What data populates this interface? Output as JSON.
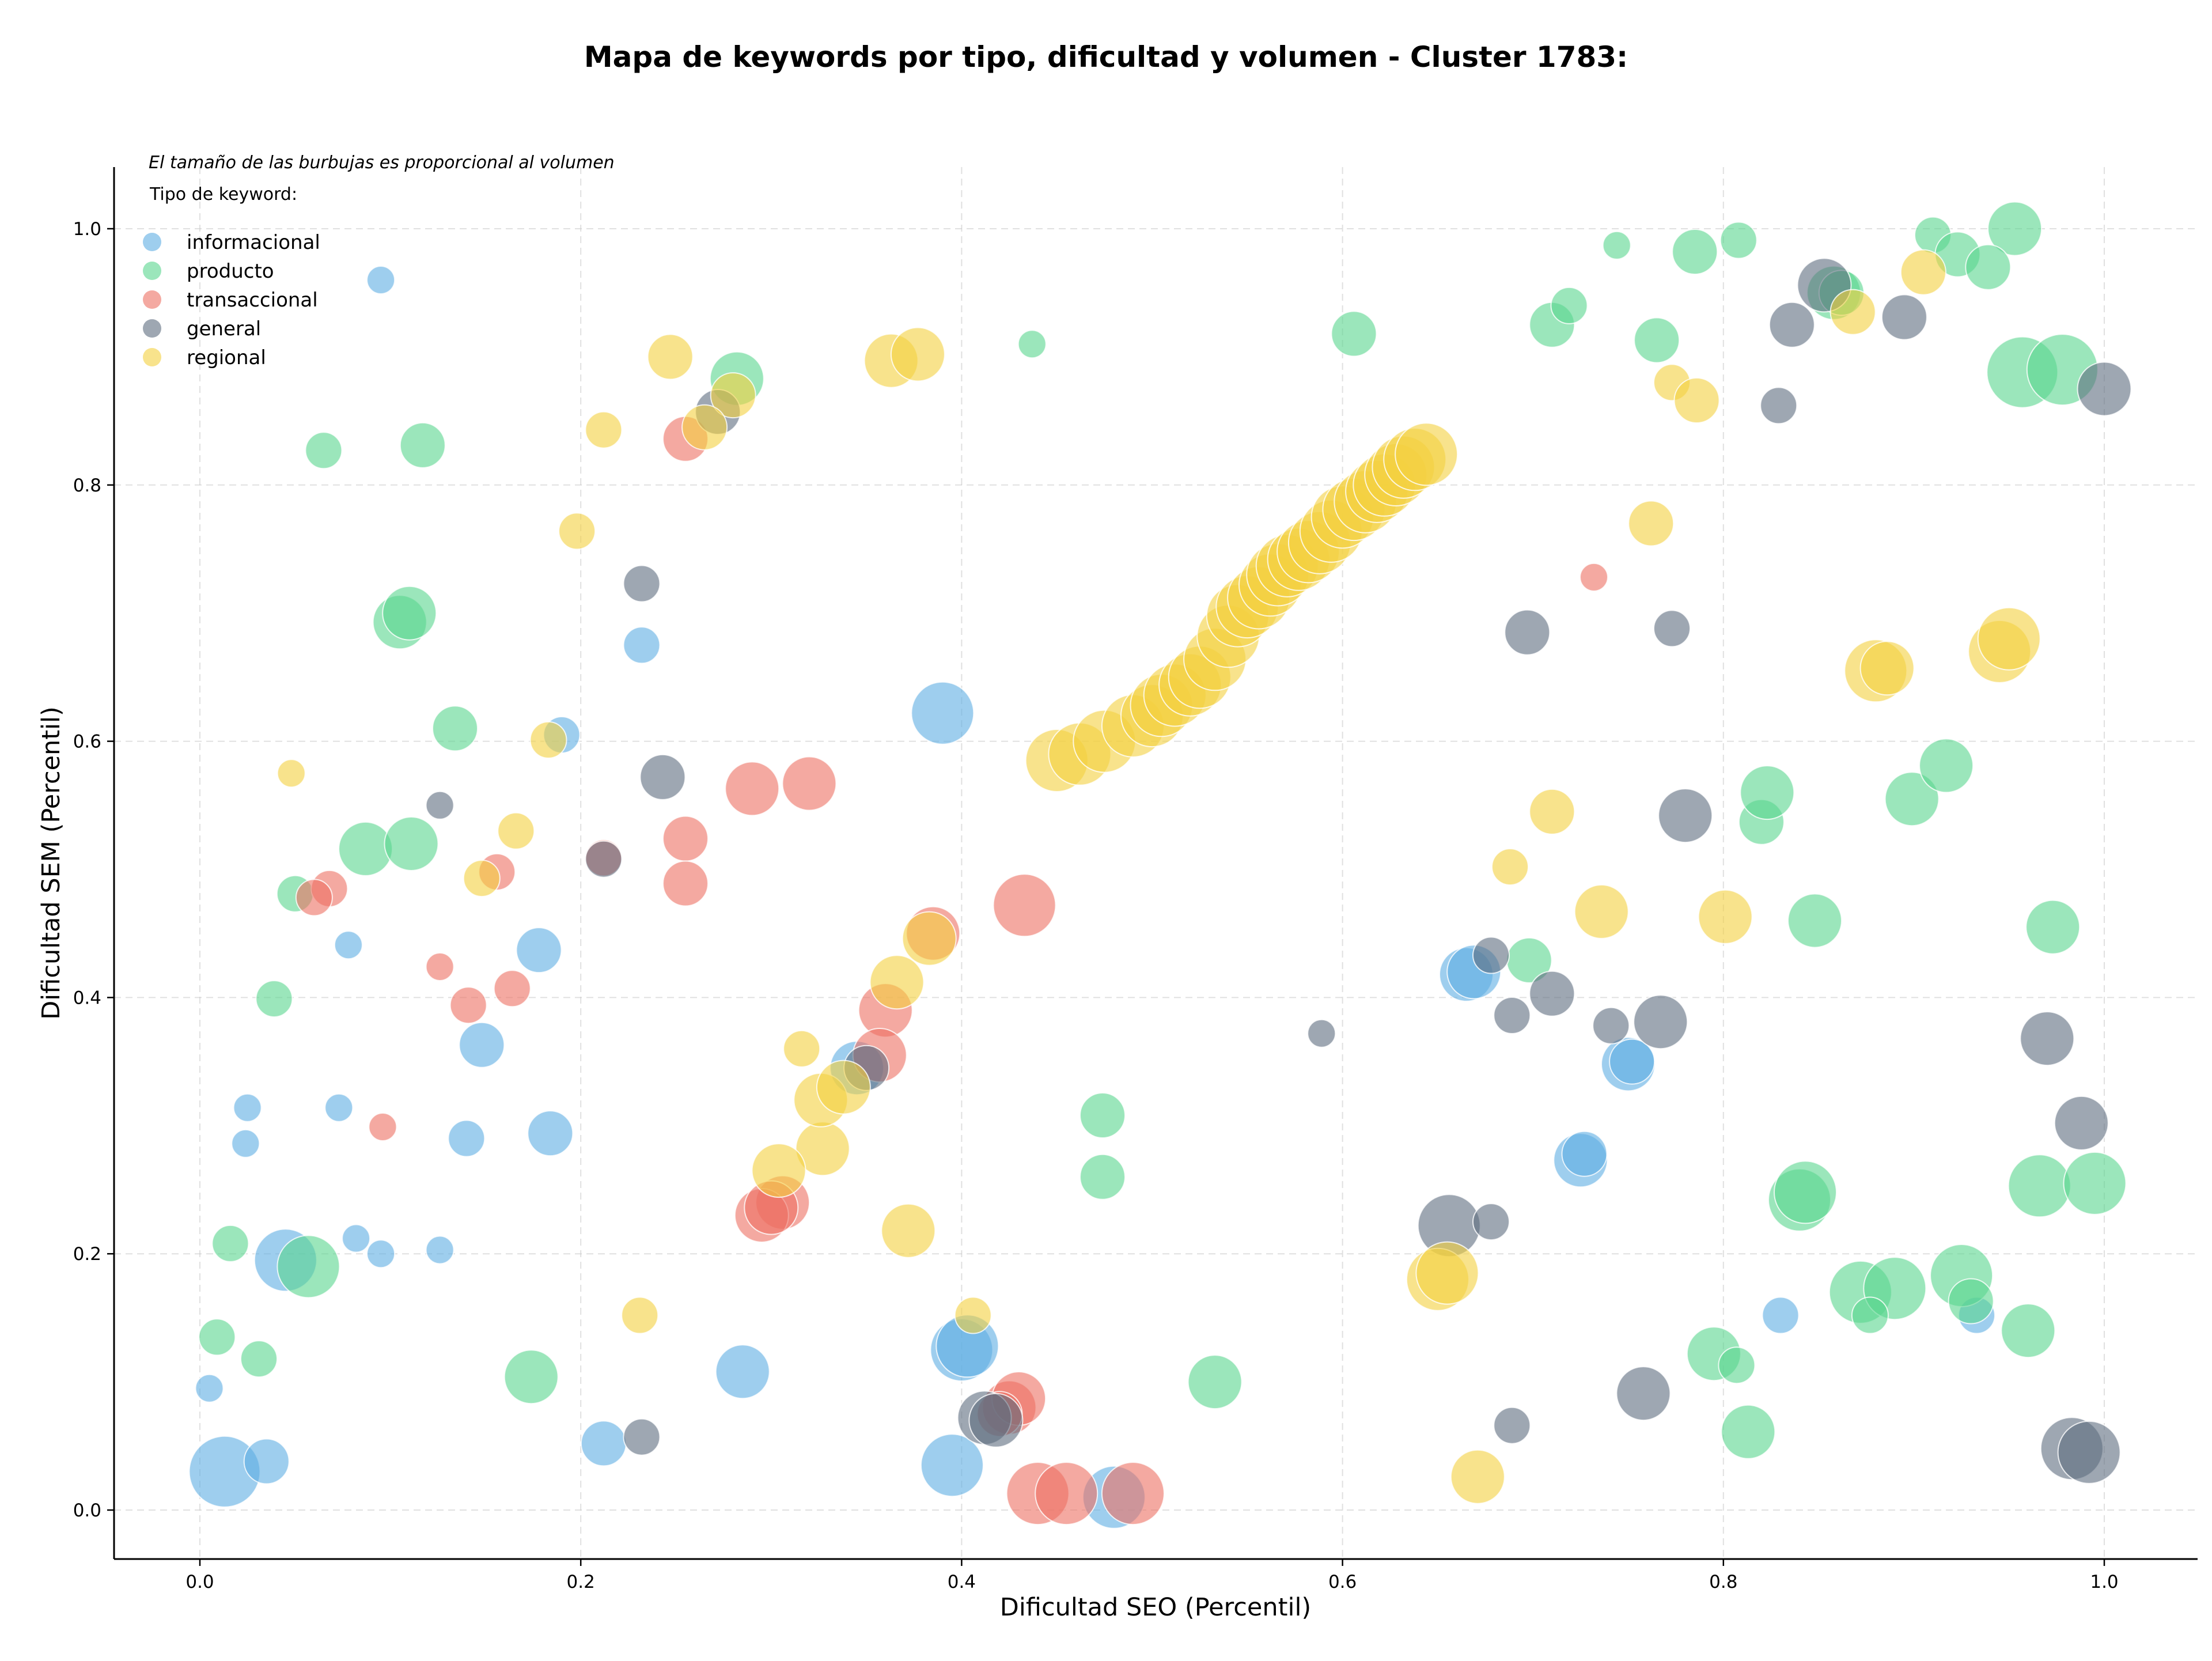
{
  "chart_data": {
    "type": "scatter",
    "title": "Mapa de keywords por tipo, dificultad y volumen - Cluster 1783:",
    "xlabel": "Dificultad SEO (Percentil)",
    "ylabel": "Dificultad SEM (Percentil)",
    "xlim": [
      -0.045,
      1.05
    ],
    "ylim": [
      -0.035,
      1.05
    ],
    "x_ticks": [
      0.0,
      0.2,
      0.4,
      0.6,
      0.8,
      1.0
    ],
    "y_ticks": [
      0.0,
      0.2,
      0.4,
      0.6,
      0.8,
      1.0
    ],
    "x_tick_labels": [
      "0.0",
      "0.2",
      "0.4",
      "0.6",
      "0.8",
      "1.0"
    ],
    "y_tick_labels": [
      "0.0",
      "0.2",
      "0.4",
      "0.6",
      "0.8",
      "1.0"
    ],
    "grid": true,
    "note": "El tamaño de las burbujas es proporcional al volumen",
    "legend_title": "Tipo de keyword:",
    "legend_position": "top-left",
    "series": [
      {
        "name": "informacional",
        "color": "#5dade2",
        "points": [
          [
            0.095,
            0.96,
            2
          ],
          [
            0.232,
            0.675,
            3
          ],
          [
            0.39,
            0.622,
            6
          ],
          [
            0.19,
            0.605,
            3
          ],
          [
            0.078,
            0.441,
            2
          ],
          [
            0.178,
            0.437,
            4
          ],
          [
            0.148,
            0.363,
            4
          ],
          [
            0.025,
            0.314,
            2
          ],
          [
            0.073,
            0.314,
            2
          ],
          [
            0.024,
            0.286,
            2
          ],
          [
            0.14,
            0.29,
            3
          ],
          [
            0.184,
            0.294,
            4
          ],
          [
            0.045,
            0.195,
            6
          ],
          [
            0.082,
            0.212,
            2
          ],
          [
            0.095,
            0.2,
            2
          ],
          [
            0.126,
            0.203,
            2
          ],
          [
            0.005,
            0.095,
            2
          ],
          [
            0.013,
            0.03,
            7
          ],
          [
            0.035,
            0.038,
            4
          ],
          [
            0.212,
            0.052,
            4
          ],
          [
            0.285,
            0.108,
            5
          ],
          [
            0.4,
            0.125,
            6
          ],
          [
            0.403,
            0.128,
            6
          ],
          [
            0.395,
            0.035,
            6
          ],
          [
            0.48,
            0.01,
            6
          ],
          [
            0.665,
            0.418,
            5
          ],
          [
            0.669,
            0.42,
            5
          ],
          [
            0.75,
            0.348,
            5
          ],
          [
            0.752,
            0.35,
            4
          ],
          [
            0.725,
            0.273,
            5
          ],
          [
            0.727,
            0.278,
            4
          ],
          [
            0.83,
            0.152,
            3
          ],
          [
            0.933,
            0.152,
            3
          ],
          [
            0.345,
            0.345,
            5
          ]
        ]
      },
      {
        "name": "producto",
        "color": "#58d68d",
        "points": [
          [
            0.065,
            0.827,
            3
          ],
          [
            0.117,
            0.831,
            4
          ],
          [
            0.282,
            0.883,
            5
          ],
          [
            0.437,
            0.91,
            2
          ],
          [
            0.105,
            0.693,
            5
          ],
          [
            0.11,
            0.7,
            5
          ],
          [
            0.134,
            0.61,
            4
          ],
          [
            0.087,
            0.516,
            5
          ],
          [
            0.111,
            0.52,
            5
          ],
          [
            0.05,
            0.481,
            3
          ],
          [
            0.039,
            0.399,
            3
          ],
          [
            0.016,
            0.208,
            3
          ],
          [
            0.057,
            0.19,
            6
          ],
          [
            0.009,
            0.135,
            3
          ],
          [
            0.031,
            0.118,
            3
          ],
          [
            0.174,
            0.104,
            5
          ],
          [
            0.474,
            0.308,
            4
          ],
          [
            0.474,
            0.26,
            4
          ],
          [
            0.533,
            0.1,
            5
          ],
          [
            0.606,
            0.918,
            4
          ],
          [
            0.744,
            0.987,
            2
          ],
          [
            0.785,
            0.982,
            4
          ],
          [
            0.808,
            0.991,
            3
          ],
          [
            0.71,
            0.925,
            4
          ],
          [
            0.719,
            0.94,
            3
          ],
          [
            0.765,
            0.913,
            4
          ],
          [
            0.858,
            0.95,
            5
          ],
          [
            0.862,
            0.95,
            4
          ],
          [
            0.91,
            0.995,
            3
          ],
          [
            0.923,
            0.98,
            4
          ],
          [
            0.953,
            1.0,
            5
          ],
          [
            0.939,
            0.97,
            4
          ],
          [
            0.957,
            0.888,
            7
          ],
          [
            0.978,
            0.89,
            7
          ],
          [
            0.698,
            0.429,
            4
          ],
          [
            0.82,
            0.537,
            4
          ],
          [
            0.823,
            0.56,
            5
          ],
          [
            0.899,
            0.555,
            5
          ],
          [
            0.917,
            0.581,
            5
          ],
          [
            0.848,
            0.46,
            5
          ],
          [
            0.973,
            0.455,
            5
          ],
          [
            0.795,
            0.122,
            5
          ],
          [
            0.807,
            0.113,
            3
          ],
          [
            0.813,
            0.061,
            5
          ],
          [
            0.84,
            0.242,
            6
          ],
          [
            0.843,
            0.248,
            6
          ],
          [
            0.872,
            0.17,
            6
          ],
          [
            0.89,
            0.173,
            6
          ],
          [
            0.877,
            0.152,
            3
          ],
          [
            0.925,
            0.183,
            6
          ],
          [
            0.93,
            0.163,
            4
          ],
          [
            0.96,
            0.14,
            5
          ],
          [
            0.966,
            0.253,
            6
          ],
          [
            0.995,
            0.255,
            6
          ]
        ]
      },
      {
        "name": "transaccional",
        "color": "#ec7063",
        "points": [
          [
            0.255,
            0.836,
            4
          ],
          [
            0.068,
            0.485,
            3
          ],
          [
            0.06,
            0.478,
            3
          ],
          [
            0.156,
            0.498,
            3
          ],
          [
            0.126,
            0.424,
            2
          ],
          [
            0.141,
            0.394,
            3
          ],
          [
            0.164,
            0.407,
            3
          ],
          [
            0.096,
            0.299,
            2
          ],
          [
            0.212,
            0.509,
            3
          ],
          [
            0.255,
            0.524,
            4
          ],
          [
            0.255,
            0.489,
            4
          ],
          [
            0.29,
            0.563,
            5
          ],
          [
            0.32,
            0.567,
            5
          ],
          [
            0.433,
            0.472,
            6
          ],
          [
            0.385,
            0.45,
            5
          ],
          [
            0.36,
            0.39,
            5
          ],
          [
            0.357,
            0.355,
            5
          ],
          [
            0.306,
            0.24,
            5
          ],
          [
            0.295,
            0.23,
            5
          ],
          [
            0.3,
            0.236,
            5
          ],
          [
            0.425,
            0.08,
            5
          ],
          [
            0.43,
            0.087,
            5
          ],
          [
            0.42,
            0.075,
            4
          ],
          [
            0.44,
            0.013,
            6
          ],
          [
            0.455,
            0.013,
            6
          ],
          [
            0.49,
            0.013,
            6
          ],
          [
            0.732,
            0.728,
            2
          ]
        ]
      },
      {
        "name": "general",
        "color": "#5d6d7e",
        "points": [
          [
            0.272,
            0.857,
            4
          ],
          [
            0.232,
            0.723,
            3
          ],
          [
            0.126,
            0.55,
            2
          ],
          [
            0.243,
            0.572,
            4
          ],
          [
            0.212,
            0.508,
            3
          ],
          [
            0.232,
            0.057,
            3
          ],
          [
            0.412,
            0.072,
            5
          ],
          [
            0.418,
            0.07,
            5
          ],
          [
            0.853,
            0.956,
            5
          ],
          [
            0.836,
            0.925,
            4
          ],
          [
            0.895,
            0.931,
            4
          ],
          [
            0.829,
            0.862,
            3
          ],
          [
            1.0,
            0.875,
            5
          ],
          [
            0.697,
            0.685,
            4
          ],
          [
            0.773,
            0.688,
            3
          ],
          [
            0.78,
            0.542,
            5
          ],
          [
            0.678,
            0.433,
            3
          ],
          [
            0.689,
            0.386,
            3
          ],
          [
            0.71,
            0.403,
            4
          ],
          [
            0.741,
            0.378,
            3
          ],
          [
            0.767,
            0.381,
            5
          ],
          [
            0.589,
            0.372,
            2
          ],
          [
            0.97,
            0.368,
            5
          ],
          [
            0.988,
            0.302,
            5
          ],
          [
            0.656,
            0.222,
            6
          ],
          [
            0.678,
            0.225,
            3
          ],
          [
            0.689,
            0.066,
            3
          ],
          [
            0.758,
            0.091,
            5
          ],
          [
            0.983,
            0.048,
            6
          ],
          [
            0.992,
            0.045,
            6
          ],
          [
            0.35,
            0.345,
            4
          ]
        ]
      },
      {
        "name": "regional",
        "color": "#f4d03f",
        "points": [
          [
            0.048,
            0.575,
            2
          ],
          [
            0.183,
            0.601,
            3
          ],
          [
            0.148,
            0.493,
            3
          ],
          [
            0.166,
            0.53,
            3
          ],
          [
            0.198,
            0.764,
            3
          ],
          [
            0.212,
            0.843,
            3
          ],
          [
            0.247,
            0.9,
            4
          ],
          [
            0.28,
            0.87,
            4
          ],
          [
            0.265,
            0.845,
            4
          ],
          [
            0.363,
            0.897,
            5
          ],
          [
            0.377,
            0.902,
            5
          ],
          [
            0.316,
            0.36,
            3
          ],
          [
            0.327,
            0.282,
            5
          ],
          [
            0.304,
            0.265,
            5
          ],
          [
            0.326,
            0.32,
            5
          ],
          [
            0.338,
            0.33,
            5
          ],
          [
            0.366,
            0.412,
            5
          ],
          [
            0.383,
            0.446,
            5
          ],
          [
            0.372,
            0.218,
            5
          ],
          [
            0.231,
            0.152,
            3
          ],
          [
            0.406,
            0.152,
            3
          ],
          [
            0.45,
            0.585,
            6
          ],
          [
            0.462,
            0.59,
            6
          ],
          [
            0.475,
            0.6,
            6
          ],
          [
            0.49,
            0.612,
            6
          ],
          [
            0.5,
            0.62,
            6
          ],
          [
            0.505,
            0.628,
            6
          ],
          [
            0.512,
            0.636,
            6
          ],
          [
            0.52,
            0.644,
            6
          ],
          [
            0.525,
            0.65,
            6
          ],
          [
            0.533,
            0.664,
            6
          ],
          [
            0.54,
            0.682,
            6
          ],
          [
            0.545,
            0.698,
            6
          ],
          [
            0.55,
            0.705,
            6
          ],
          [
            0.556,
            0.712,
            6
          ],
          [
            0.562,
            0.722,
            6
          ],
          [
            0.566,
            0.73,
            6
          ],
          [
            0.571,
            0.737,
            6
          ],
          [
            0.577,
            0.742,
            6
          ],
          [
            0.582,
            0.748,
            6
          ],
          [
            0.588,
            0.755,
            6
          ],
          [
            0.594,
            0.764,
            6
          ],
          [
            0.6,
            0.775,
            6
          ],
          [
            0.606,
            0.781,
            6
          ],
          [
            0.612,
            0.787,
            6
          ],
          [
            0.618,
            0.795,
            6
          ],
          [
            0.622,
            0.8,
            6
          ],
          [
            0.628,
            0.808,
            6
          ],
          [
            0.632,
            0.814,
            6
          ],
          [
            0.638,
            0.82,
            6
          ],
          [
            0.644,
            0.824,
            6
          ],
          [
            0.762,
            0.77,
            4
          ],
          [
            0.71,
            0.545,
            4
          ],
          [
            0.688,
            0.502,
            3
          ],
          [
            0.736,
            0.467,
            5
          ],
          [
            0.801,
            0.463,
            5
          ],
          [
            0.88,
            0.655,
            6
          ],
          [
            0.886,
            0.657,
            5
          ],
          [
            0.945,
            0.67,
            6
          ],
          [
            0.95,
            0.68,
            6
          ],
          [
            0.65,
            0.18,
            6
          ],
          [
            0.655,
            0.185,
            6
          ],
          [
            0.671,
            0.026,
            5
          ],
          [
            0.773,
            0.88,
            3
          ],
          [
            0.786,
            0.866,
            4
          ],
          [
            0.868,
            0.935,
            4
          ],
          [
            0.905,
            0.966,
            4
          ]
        ]
      }
    ]
  }
}
